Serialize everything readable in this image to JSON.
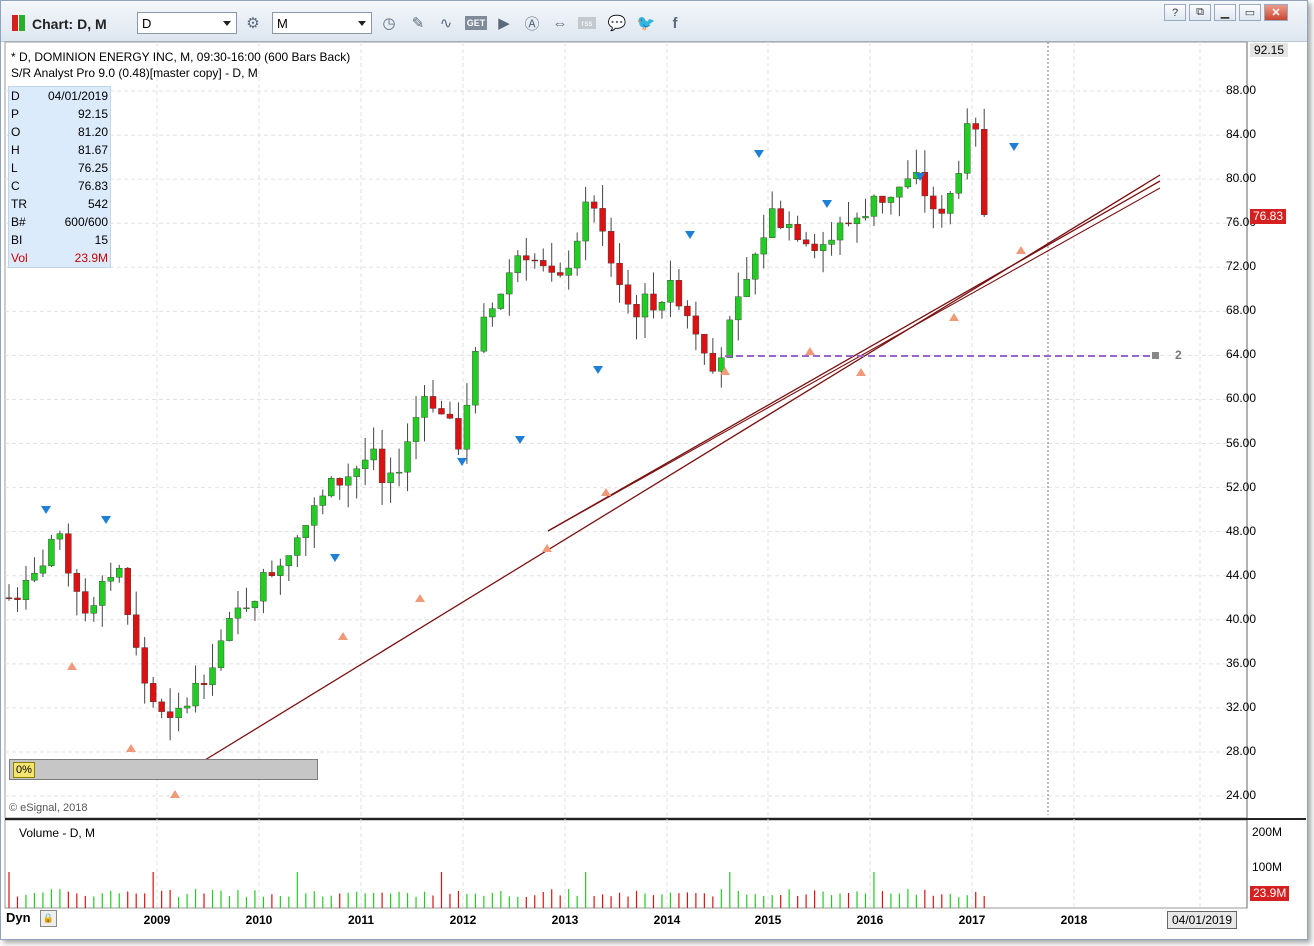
{
  "toolbar": {
    "title": "Chart: D, M",
    "symbol_value": "D",
    "interval_value": "M",
    "window_buttons": [
      "?",
      "⧉",
      "▭",
      "✕"
    ]
  },
  "chart": {
    "header_line1": "* D, DOMINION ENERGY INC, M, 09:30-16:00 (600 Bars Back)",
    "header_line2": "S/R Analyst Pro 9.0 (0.48)[master copy] - D, M",
    "copyright": "© eSignal, 2018",
    "progress_label": "0%",
    "sr_level_label": "2",
    "price_axis": [
      "88.00",
      "84.00",
      "80.00",
      "76.00",
      "72.00",
      "68.00",
      "64.00",
      "60.00",
      "56.00",
      "52.00",
      "48.00",
      "44.00",
      "40.00",
      "36.00",
      "32.00",
      "28.00",
      "24.00"
    ],
    "top_price": "92.15",
    "last_price_tag": "76.83",
    "colors": {
      "up": "#22cc22",
      "down": "#dd1111",
      "trend": "#7a1010",
      "sr_line": "#9966cc",
      "signal_down": "#1e7fd6",
      "signal_up": "#ef9a78"
    }
  },
  "cursor": {
    "rows": [
      {
        "k": "D",
        "v": "04/01/2019"
      },
      {
        "k": "P",
        "v": "92.15"
      },
      {
        "k": "O",
        "v": "81.20"
      },
      {
        "k": "H",
        "v": "81.67"
      },
      {
        "k": "L",
        "v": "76.25"
      },
      {
        "k": "C",
        "v": "76.83"
      },
      {
        "k": "TR",
        "v": "542"
      },
      {
        "k": "B#",
        "v": "600/600"
      },
      {
        "k": "BI",
        "v": "15"
      },
      {
        "k": "Vol",
        "v": "23.9M"
      }
    ]
  },
  "volume": {
    "title": "Volume - D, M",
    "axis": [
      "200M",
      "100M"
    ],
    "last_tag": "23.9M"
  },
  "xaxis": {
    "dyn_label": "Dyn",
    "years": [
      "2009",
      "2010",
      "2011",
      "2012",
      "2013",
      "2014",
      "2015",
      "2016",
      "2017",
      "2018"
    ],
    "cursor_date": "04/01/2019"
  }
}
